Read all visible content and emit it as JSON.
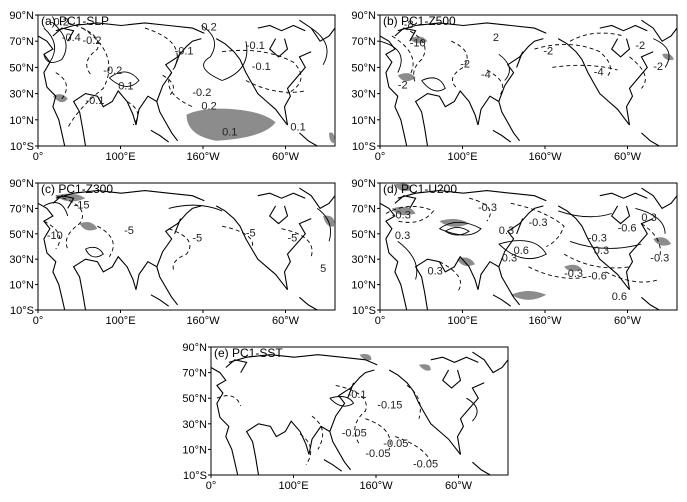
{
  "panels": [
    {
      "id": "a",
      "title": "(a) PC1-SLP",
      "lat_ticks": [
        "90°N",
        "70°N",
        "50°N",
        "30°N",
        "10°N",
        "10°S"
      ],
      "lon_ticks": [
        "0°",
        "100°E",
        "160°W",
        "60°W"
      ],
      "contour_labels": [
        "-0.2",
        "-0.4",
        "-0.2",
        "0.2",
        "-0.1",
        "-0.1",
        "0.1",
        "-0.1",
        "-0.2",
        "0.2",
        "-0.1",
        "0.1",
        "-0.2",
        "0.1"
      ]
    },
    {
      "id": "b",
      "title": "(b) PC1-Z500",
      "lat_ticks": [
        "90°N",
        "70°N",
        "50°N",
        "30°N",
        "10°N",
        "10°S"
      ],
      "lon_ticks": [
        "0°",
        "100°E",
        "160°W",
        "60°W"
      ],
      "contour_labels": [
        "-8",
        "-10",
        "-2",
        "-4",
        "-2",
        "-2",
        "-4",
        "-2",
        "2",
        "-2"
      ]
    },
    {
      "id": "c",
      "title": "(c) PC1-Z300",
      "lat_ticks": [
        "90°N",
        "70°N",
        "50°N",
        "30°N",
        "10°N",
        "10°S"
      ],
      "lon_ticks": [
        "0°",
        "100°E",
        "160°W",
        "60°W"
      ],
      "contour_labels": [
        "-15",
        "-10",
        "-5",
        "-5",
        "-5",
        "-5",
        "5"
      ]
    },
    {
      "id": "d",
      "title": "(d) PC1-U200",
      "lat_ticks": [
        "90°N",
        "70°N",
        "50°N",
        "30°N",
        "10°N",
        "10°S"
      ],
      "lon_ticks": [
        "0°",
        "100°E",
        "160°W",
        "60°W"
      ],
      "contour_labels": [
        "-0.3",
        "0.3",
        "-0.3",
        "0.3",
        "-0.3",
        "0.3",
        "0.3",
        "0.6",
        "-0.3",
        "0.3",
        "-0.6",
        "0.3",
        "-0.3",
        "-0.6",
        "0.6",
        "-0.3"
      ]
    },
    {
      "id": "e",
      "title": "(e) PC1-SST",
      "lat_ticks": [
        "90°N",
        "70°N",
        "50°N",
        "30°N",
        "10°N",
        "10°S"
      ],
      "lon_ticks": [
        "0°",
        "100°E",
        "160°W",
        "60°W"
      ],
      "contour_labels": [
        "-0.1",
        "-0.15",
        "-0.05",
        "-0.05",
        "-0.05",
        "-0.05"
      ]
    }
  ]
}
